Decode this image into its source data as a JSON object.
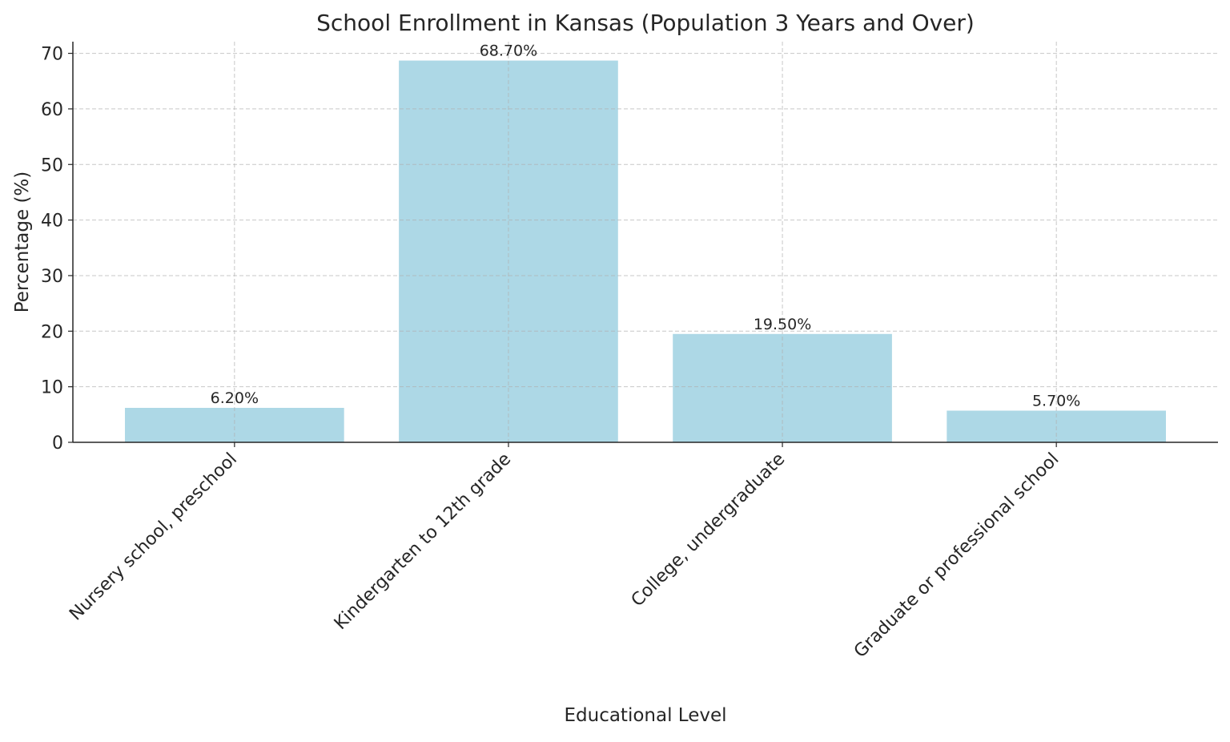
{
  "chart_data": {
    "type": "bar",
    "title": "School Enrollment in Kansas (Population 3 Years and Over)",
    "xlabel": "Educational Level",
    "ylabel": "Percentage (%)",
    "categories": [
      "Nursery school, preschool",
      "Kindergarten to 12th grade",
      "College, undergraduate",
      "Graduate or professional school"
    ],
    "values": [
      6.2,
      68.7,
      19.5,
      5.7
    ],
    "data_labels": [
      "6.20%",
      "68.70%",
      "19.50%",
      "5.70%"
    ],
    "yticks": [
      0,
      10,
      20,
      30,
      40,
      50,
      60,
      70
    ],
    "ylim": [
      0,
      72.1
    ],
    "grid": true,
    "bar_color": "#ADD8E6"
  }
}
